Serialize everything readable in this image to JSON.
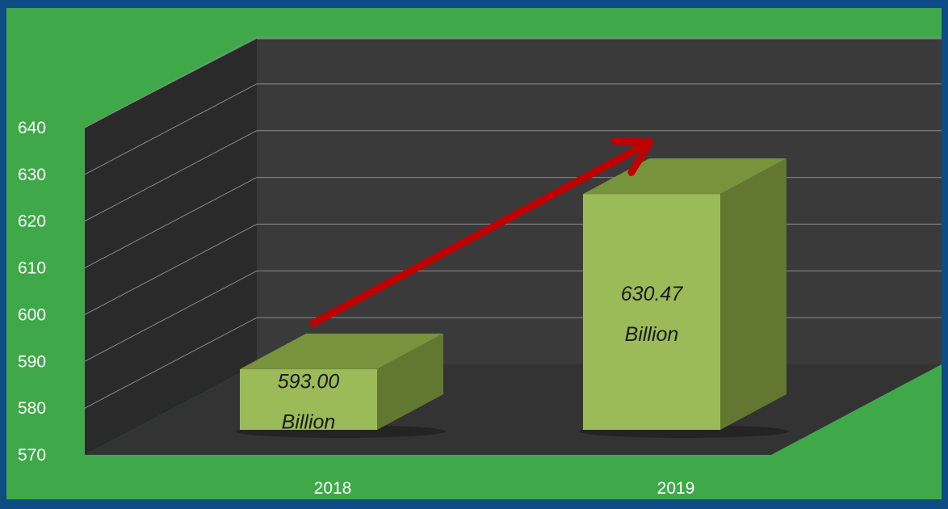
{
  "chart_data": {
    "type": "bar",
    "title": "",
    "xlabel": "",
    "ylabel": "",
    "categories": [
      "2018",
      "2019"
    ],
    "values": [
      593.0,
      630.47
    ],
    "data_labels": [
      [
        "593.00",
        "Billion"
      ],
      [
        "630.47",
        "Billion"
      ]
    ],
    "ylim": [
      570,
      640
    ],
    "yticks": [
      "570",
      "580",
      "590",
      "600",
      "610",
      "620",
      "630",
      "640"
    ],
    "grid": true,
    "legend": "none",
    "style": "3d-columns",
    "annotation": "red arrow rising from 2018 to 2019",
    "colors": {
      "frame": "#0d4c84",
      "background": "#3fa949",
      "back_wall": "#3a3a3a",
      "side_wall": "#2a2a2a",
      "floor": "#333333",
      "bar_front": "#9bbb59",
      "bar_top": "#77933c",
      "bar_side": "#62772f",
      "arrow": "#c00000",
      "tick_text": "#ffffff",
      "label_text": "#1a1a1a"
    }
  }
}
